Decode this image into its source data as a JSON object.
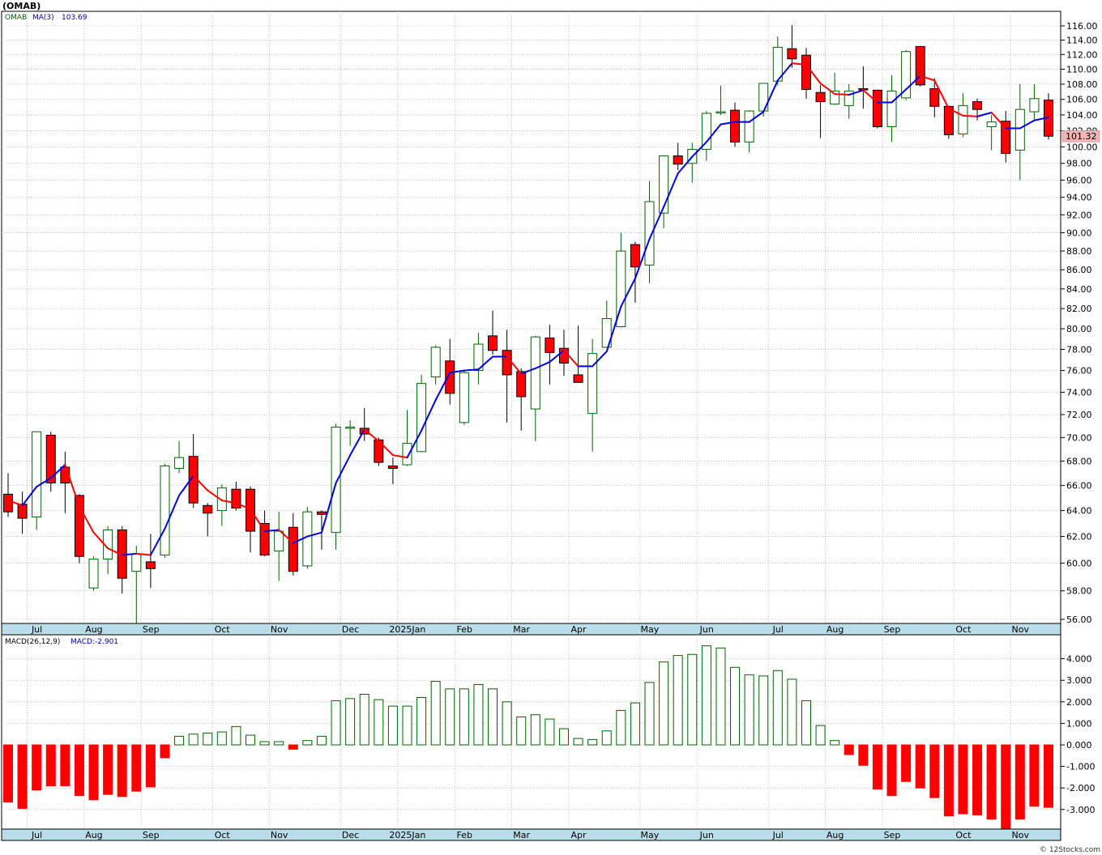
{
  "title": "(OMAB)",
  "watermark": "© 12Stocks.com",
  "colors": {
    "up": "#006400",
    "down": "#ff0000",
    "ma_up": "#0000dd",
    "ma_down": "#ff0000",
    "axis_strip": "#b9dde9",
    "grid": "#b0b0b0",
    "last_price_box": "#f4b4b4"
  },
  "price_panel": {
    "legend": {
      "symbol": "OMAB",
      "ma_label": "MA(3)",
      "ma_value": "103.69"
    },
    "last_price": "101.32",
    "y_ticks": [
      "116.00",
      "114.00",
      "112.00",
      "110.00",
      "108.00",
      "106.00",
      "104.00",
      "102.00",
      "100.00",
      "98.00",
      "96.00",
      "94.00",
      "92.00",
      "90.00",
      "88.00",
      "86.00",
      "84.00",
      "82.00",
      "80.00",
      "78.00",
      "76.00",
      "74.00",
      "72.00",
      "70.00",
      "68.00",
      "66.00",
      "64.00",
      "62.00",
      "60.00",
      "58.00",
      "56.00"
    ],
    "x_labels": [
      "Jul",
      "Aug",
      "Sep",
      "Oct",
      "Nov",
      "Dec",
      "2025Jan",
      "Feb",
      "Mar",
      "Apr",
      "May",
      "Jun",
      "Jul",
      "Aug",
      "Sep",
      "Oct",
      "Nov"
    ]
  },
  "macd_panel": {
    "legend": {
      "label": "MACD(26,12,9)",
      "value_label": "MACD:-2.901"
    },
    "y_ticks": [
      "4.000",
      "3.000",
      "2.000",
      "1.000",
      "0.000",
      "-1.000",
      "-2.000",
      "-3.000"
    ],
    "x_labels": [
      "Jul",
      "Aug",
      "Sep",
      "Oct",
      "Nov",
      "Dec",
      "2025Jan",
      "Feb",
      "Mar",
      "Apr",
      "May",
      "Jun",
      "Jul",
      "Aug",
      "Sep",
      "Oct",
      "Nov"
    ]
  },
  "chart_data": [
    {
      "type": "candlestick",
      "title": "(OMAB)",
      "ylim": [
        55,
        117
      ],
      "y_scale": "log",
      "interval": "weekly",
      "x_labels": [
        "Jul",
        "Aug",
        "Sep",
        "Oct",
        "Nov",
        "Dec",
        "2025Jan",
        "Feb",
        "Mar",
        "Apr",
        "May",
        "Jun",
        "Jul",
        "Aug",
        "Sep",
        "Oct",
        "Nov"
      ],
      "ohlc": [
        [
          65.3,
          67.0,
          63.5,
          63.9
        ],
        [
          64.5,
          65.5,
          62.2,
          63.4
        ],
        [
          63.5,
          70.0,
          62.5,
          70.5
        ],
        [
          70.2,
          70.5,
          65.5,
          66.2
        ],
        [
          67.5,
          68.8,
          63.8,
          66.2
        ],
        [
          65.2,
          65.3,
          60.0,
          60.5
        ],
        [
          58.2,
          60.5,
          58.0,
          60.3
        ],
        [
          60.3,
          62.8,
          59.2,
          62.5
        ],
        [
          62.5,
          62.8,
          57.8,
          58.9
        ],
        [
          59.4,
          61.3,
          55.5,
          60.7
        ],
        [
          60.1,
          62.2,
          58.2,
          59.6
        ],
        [
          60.6,
          67.8,
          60.4,
          67.6
        ],
        [
          67.4,
          69.7,
          67.0,
          68.3
        ],
        [
          68.4,
          70.3,
          64.2,
          64.6
        ],
        [
          64.4,
          64.6,
          62.0,
          63.8
        ],
        [
          64.0,
          66.1,
          62.8,
          65.8
        ],
        [
          65.7,
          66.3,
          64.0,
          64.2
        ],
        [
          65.7,
          65.9,
          60.8,
          62.4
        ],
        [
          63.0,
          64.0,
          60.5,
          60.6
        ],
        [
          60.9,
          63.9,
          58.7,
          62.4
        ],
        [
          62.7,
          63.8,
          59.1,
          59.4
        ],
        [
          59.8,
          64.3,
          59.6,
          63.9
        ],
        [
          63.9,
          64.0,
          61.0,
          63.7
        ],
        [
          62.3,
          71.2,
          61.0,
          70.9
        ],
        [
          70.9,
          71.5,
          69.3,
          70.9
        ],
        [
          70.8,
          72.6,
          69.7,
          70.3
        ],
        [
          69.8,
          70.0,
          67.6,
          67.9
        ],
        [
          67.6,
          68.3,
          66.1,
          67.4
        ],
        [
          67.7,
          72.4,
          67.6,
          69.5
        ],
        [
          68.8,
          75.6,
          68.8,
          74.8
        ],
        [
          75.4,
          78.4,
          74.7,
          78.2
        ],
        [
          76.9,
          79.0,
          72.9,
          73.9
        ],
        [
          71.3,
          76.0,
          71.1,
          75.8
        ],
        [
          76.0,
          79.6,
          74.7,
          78.5
        ],
        [
          79.3,
          81.8,
          77.5,
          77.9
        ],
        [
          77.9,
          79.9,
          71.3,
          75.6
        ],
        [
          75.9,
          76.2,
          70.6,
          73.6
        ],
        [
          72.5,
          79.3,
          69.7,
          79.2
        ],
        [
          79.1,
          80.4,
          74.7,
          77.7
        ],
        [
          78.1,
          79.9,
          75.5,
          76.7
        ],
        [
          75.6,
          80.3,
          74.9,
          74.9
        ],
        [
          72.1,
          79.0,
          68.8,
          77.6
        ],
        [
          78.2,
          82.8,
          78.2,
          81.0
        ],
        [
          80.2,
          90.0,
          80.2,
          88.0
        ],
        [
          88.7,
          89.0,
          82.6,
          86.3
        ],
        [
          86.5,
          95.9,
          84.6,
          93.5
        ],
        [
          92.2,
          98.7,
          90.5,
          98.9
        ],
        [
          98.9,
          100.5,
          97.2,
          97.9
        ],
        [
          98.0,
          100.5,
          95.7,
          99.7
        ],
        [
          99.7,
          104.5,
          98.3,
          104.2
        ],
        [
          104.3,
          107.8,
          104.0,
          104.4
        ],
        [
          104.6,
          105.6,
          100.0,
          100.6
        ],
        [
          100.6,
          104.6,
          99.3,
          104.5
        ],
        [
          104.5,
          107.8,
          103.8,
          108.1
        ],
        [
          108.4,
          114.5,
          107.8,
          113.0
        ],
        [
          112.8,
          116.1,
          110.2,
          111.4
        ],
        [
          111.9,
          112.9,
          106.1,
          107.3
        ],
        [
          106.9,
          107.9,
          101.1,
          105.7
        ],
        [
          105.4,
          109.5,
          105.3,
          107.1
        ],
        [
          105.2,
          108.0,
          103.5,
          107.1
        ],
        [
          107.4,
          110.4,
          104.8,
          107.3
        ],
        [
          107.2,
          107.3,
          102.3,
          102.5
        ],
        [
          102.5,
          109.2,
          100.6,
          107.1
        ],
        [
          106.2,
          112.6,
          105.9,
          112.4
        ],
        [
          113.1,
          113.2,
          107.7,
          107.9
        ],
        [
          107.4,
          108.8,
          103.7,
          105.1
        ],
        [
          105.1,
          105.1,
          101.0,
          101.5
        ],
        [
          101.6,
          106.8,
          101.2,
          105.2
        ],
        [
          105.7,
          106.1,
          103.3,
          104.7
        ],
        [
          102.5,
          104.0,
          99.6,
          103.1
        ],
        [
          103.2,
          104.5,
          98.1,
          99.2
        ],
        [
          99.6,
          108.0,
          96.0,
          104.7
        ],
        [
          104.4,
          108.0,
          103.2,
          106.1
        ],
        [
          105.9,
          106.8,
          100.9,
          101.32
        ]
      ]
    },
    {
      "type": "line",
      "name": "MA(3)",
      "values": [
        64.8,
        64.4,
        65.9,
        66.6,
        67.7,
        64.3,
        62.3,
        61.1,
        60.6,
        60.7,
        60.6,
        62.6,
        65.2,
        66.8,
        65.6,
        64.8,
        64.6,
        64.1,
        62.4,
        62.5,
        61.5,
        62.0,
        62.3,
        66.2,
        68.5,
        70.7,
        69.7,
        68.5,
        68.3,
        70.6,
        73.3,
        75.8,
        76.0,
        76.1,
        77.3,
        77.3,
        75.7,
        76.2,
        76.8,
        77.9,
        76.4,
        76.4,
        77.8,
        82.2,
        85.1,
        89.3,
        92.9,
        96.8,
        98.8,
        100.6,
        102.8,
        103.1,
        103.1,
        104.4,
        108.5,
        110.8,
        110.6,
        108.1,
        106.7,
        106.6,
        107.2,
        105.6,
        105.6,
        107.3,
        109.1,
        108.5,
        104.8,
        103.9,
        103.8,
        104.3,
        102.3,
        102.3,
        103.3,
        103.69
      ]
    },
    {
      "type": "bar",
      "name": "MACD(26,12,9)",
      "ylim": [
        -4.0,
        4.8
      ],
      "values": [
        -2.65,
        -2.95,
        -2.1,
        -1.9,
        -1.9,
        -2.35,
        -2.55,
        -2.3,
        -2.4,
        -2.15,
        -1.95,
        -0.6,
        0.4,
        0.5,
        0.55,
        0.6,
        0.85,
        0.45,
        0.15,
        0.15,
        -0.2,
        0.2,
        0.4,
        2.05,
        2.15,
        2.35,
        2.1,
        1.8,
        1.8,
        2.2,
        2.95,
        2.6,
        2.6,
        2.8,
        2.6,
        2.0,
        1.3,
        1.4,
        1.2,
        0.75,
        0.3,
        0.25,
        0.65,
        1.6,
        1.95,
        2.9,
        3.85,
        4.15,
        4.2,
        4.6,
        4.5,
        3.6,
        3.25,
        3.2,
        3.45,
        3.05,
        2.05,
        0.9,
        0.2,
        -0.45,
        -0.95,
        -2.05,
        -2.35,
        -1.7,
        -2.0,
        -2.45,
        -3.3,
        -3.2,
        -3.25,
        -3.45,
        -4.0,
        -3.45,
        -2.85,
        -2.9
      ]
    }
  ]
}
